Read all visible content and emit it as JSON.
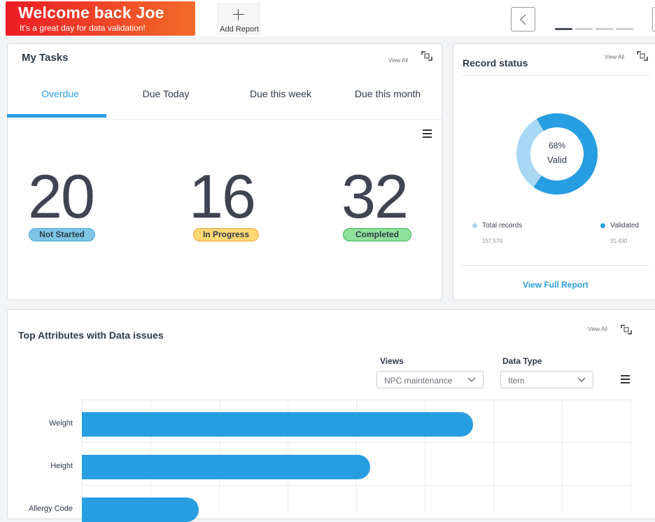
{
  "header": {
    "welcome_title": "Welcome back Joe",
    "welcome_subtitle": "It's a great day for data validation!",
    "add_report_label": "Add Report"
  },
  "my_tasks": {
    "title": "My Tasks",
    "view_all": "View All",
    "tabs": [
      {
        "label": "Overdue",
        "active": true
      },
      {
        "label": "Due Today",
        "active": false
      },
      {
        "label": "Due this week",
        "active": false
      },
      {
        "label": "Due this month",
        "active": false
      }
    ],
    "stats": [
      {
        "value": "20",
        "label": "Not Started",
        "color": "#7dc4e6",
        "border": "#4aa6d6"
      },
      {
        "value": "16",
        "label": "In Progress",
        "color": "#ffd873",
        "border": "#e8a33a"
      },
      {
        "value": "32",
        "label": "Completed",
        "color": "#8fe09a",
        "border": "#3fb25c"
      }
    ]
  },
  "record_status": {
    "title": "Record status",
    "view_all": "View All",
    "percent": "68%",
    "percent_value": 68,
    "center_label": "Valid",
    "legend": [
      {
        "label": "Total records",
        "value": "157,570",
        "color": "#a9d8f5"
      },
      {
        "label": "Validated",
        "value": "31,430",
        "color": "#279de2"
      }
    ],
    "full_report_label": "View Full Report"
  },
  "top_attributes": {
    "title": "Top Attributes with Data issues",
    "view_all": "View All",
    "views_label": "Views",
    "views_value": "NPC maintenance",
    "data_type_label": "Data Type",
    "data_type_value": "Item"
  },
  "chart_data": {
    "type": "bar",
    "orientation": "horizontal",
    "categories": [
      "Weight",
      "Height",
      "Allergy Code"
    ],
    "values": [
      5.7,
      4.2,
      1.7
    ],
    "xlim": [
      0,
      8
    ],
    "grid": true,
    "bar_color": "#279de2"
  }
}
